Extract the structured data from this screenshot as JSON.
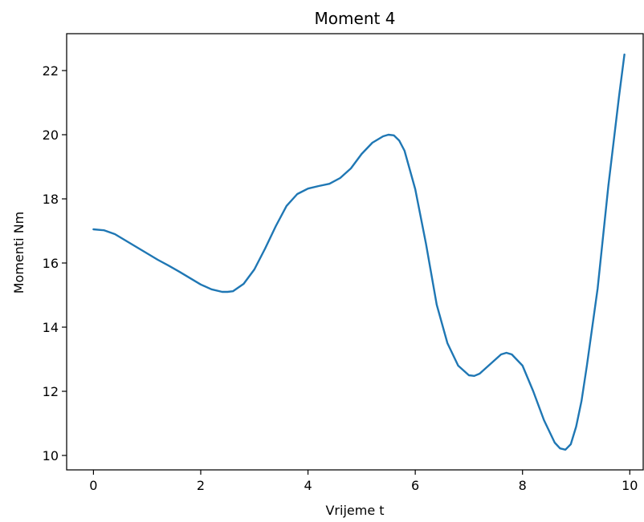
{
  "chart_data": {
    "type": "line",
    "title": "Moment 4",
    "xlabel": "Vrijeme t",
    "ylabel": "Momenti Nm",
    "xlim": [
      -0.5,
      10.25
    ],
    "ylim": [
      9.55,
      23.15
    ],
    "xticks": [
      0,
      2,
      4,
      6,
      8,
      10
    ],
    "yticks": [
      10,
      12,
      14,
      16,
      18,
      20,
      22
    ],
    "grid": false,
    "series": [
      {
        "color": "#1f77b4",
        "x": [
          0,
          0.2,
          0.4,
          0.6,
          0.8,
          1.0,
          1.2,
          1.4,
          1.6,
          1.8,
          2.0,
          2.2,
          2.4,
          2.5,
          2.6,
          2.8,
          3.0,
          3.2,
          3.4,
          3.6,
          3.8,
          4.0,
          4.2,
          4.4,
          4.6,
          4.8,
          5.0,
          5.2,
          5.4,
          5.5,
          5.6,
          5.7,
          5.8,
          6.0,
          6.2,
          6.4,
          6.6,
          6.8,
          7.0,
          7.1,
          7.2,
          7.4,
          7.6,
          7.7,
          7.8,
          8.0,
          8.2,
          8.4,
          8.6,
          8.7,
          8.8,
          8.9,
          9.0,
          9.1,
          9.2,
          9.4,
          9.6,
          9.8,
          9.9
        ],
        "y": [
          17.05,
          17.02,
          16.9,
          16.7,
          16.5,
          16.3,
          16.1,
          15.92,
          15.73,
          15.53,
          15.33,
          15.18,
          15.1,
          15.1,
          15.12,
          15.35,
          15.8,
          16.45,
          17.15,
          17.78,
          18.15,
          18.32,
          18.4,
          18.47,
          18.65,
          18.95,
          19.4,
          19.75,
          19.95,
          20.0,
          19.98,
          19.82,
          19.5,
          18.3,
          16.6,
          14.7,
          13.5,
          12.8,
          12.5,
          12.48,
          12.55,
          12.85,
          13.15,
          13.2,
          13.15,
          12.8,
          12.0,
          11.1,
          10.4,
          10.22,
          10.18,
          10.35,
          10.9,
          11.7,
          12.8,
          15.2,
          18.4,
          21.2,
          22.5
        ]
      }
    ]
  }
}
